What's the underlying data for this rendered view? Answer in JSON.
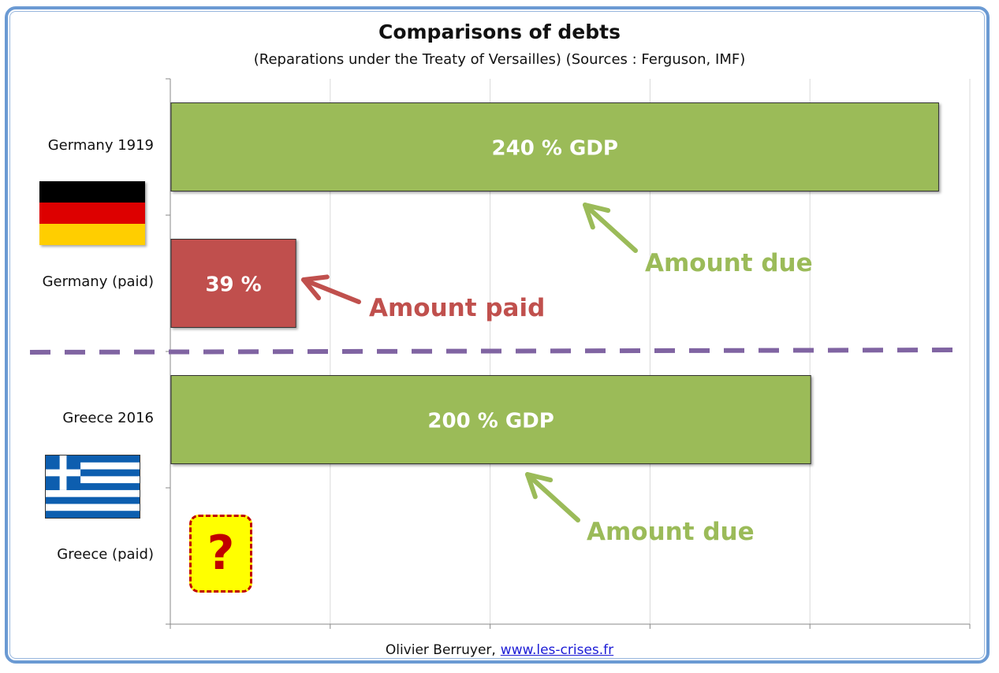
{
  "chart_data": {
    "type": "bar",
    "orientation": "horizontal",
    "title": "Comparisons of debts",
    "subtitle": "(Reparations under the Treaty of Versailles) (Sources : Ferguson, IMF)",
    "categories": [
      "Germany 1919",
      "Germany (paid)",
      "Greece 2016",
      "Greece (paid)"
    ],
    "values": [
      240,
      39,
      200,
      null
    ],
    "bar_labels": [
      "240 % GDP",
      "39 %",
      "200 % GDP",
      "?"
    ],
    "bar_colors": [
      "#9bbb59",
      "#c0504d",
      "#9bbb59",
      null
    ],
    "xlim": [
      0,
      250
    ],
    "grid": true,
    "annotations": {
      "germany_due": "Amount due",
      "germany_paid": "Amount paid",
      "greece_due": "Amount due"
    },
    "annotation_colors": {
      "due": "#9bbb59",
      "paid": "#c0504d"
    },
    "divider_color": "#8064a2"
  },
  "flags": {
    "germany": "germany-flag-icon",
    "greece": "greece-flag-icon"
  },
  "question_mark": "?",
  "footer": {
    "author": "Olivier Berruyer,",
    "link": "www.les-crises.fr"
  }
}
